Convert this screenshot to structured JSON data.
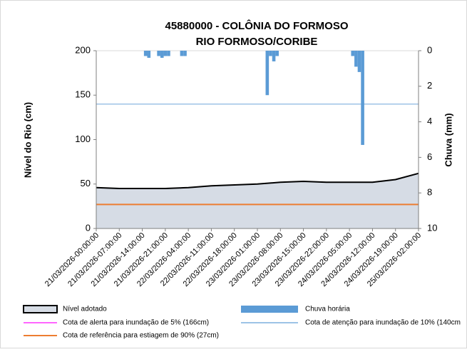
{
  "chart_data": {
    "type": "area_bar",
    "title": "45880000 - COLÔNIA DO FORMOSO",
    "subtitle": "RIO FORMOSO/CORIBE",
    "y_label": "Nível do Rio (cm)",
    "y2_label": "Chuva (mm)",
    "xticks": [
      "21/03/2026-00:00:00",
      "21/03/2026-07:00:00",
      "21/03/2026-14:00:00",
      "21/03/2026-21:00:00",
      "22/03/2026-04:00:00",
      "22/03/2026-11:00:00",
      "22/03/2026-18:00:00",
      "23/03/2026-01:00:00",
      "23/03/2026-08:00:00",
      "23/03/2026-15:00:00",
      "23/03/2026-22:00:00",
      "24/03/2026-05:00:00",
      "24/03/2026-12:00:00",
      "24/03/2026-19:00:00",
      "25/03/2026-02:00:00"
    ],
    "ylim": [
      0,
      200
    ],
    "yticks": [
      0,
      50,
      100,
      150,
      200
    ],
    "y2lim": [
      0,
      10
    ],
    "y2ticks": [
      0,
      2,
      4,
      6,
      8,
      10
    ],
    "y2_inverted": true,
    "series": [
      {
        "name": "Nível adotado",
        "color": "#d6dce5",
        "x": [
          "21/03/2026-00:00:00",
          "21/03/2026-07:00:00",
          "21/03/2026-14:00:00",
          "21/03/2026-21:00:00",
          "22/03/2026-04:00:00",
          "22/03/2026-11:00:00",
          "22/03/2026-18:00:00",
          "23/03/2026-01:00:00",
          "23/03/2026-08:00:00",
          "23/03/2026-15:00:00",
          "23/03/2026-22:00:00",
          "24/03/2026-05:00:00",
          "24/03/2026-12:00:00",
          "24/03/2026-19:00:00",
          "25/03/2026-02:00:00"
        ],
        "values": [
          46,
          45,
          45,
          45,
          46,
          48,
          49,
          50,
          52,
          53,
          52,
          52,
          52,
          55,
          62
        ]
      },
      {
        "name": "Chuva horária",
        "color": "#5b9bd5",
        "axis": "y2",
        "x": [
          "21/03/2026-15:00:00",
          "21/03/2026-16:00:00",
          "21/03/2026-19:00:00",
          "21/03/2026-20:00:00",
          "21/03/2026-21:00:00",
          "21/03/2026-22:00:00",
          "22/03/2026-02:00:00",
          "22/03/2026-03:00:00",
          "23/03/2026-04:00:00",
          "23/03/2026-05:00:00",
          "23/03/2026-06:00:00",
          "23/03/2026-07:00:00",
          "24/03/2026-06:00:00",
          "24/03/2026-07:00:00",
          "24/03/2026-08:00:00",
          "24/03/2026-09:00:00"
        ],
        "values": [
          0.3,
          0.4,
          0.3,
          0.4,
          0.3,
          0.3,
          0.3,
          0.3,
          2.5,
          0.3,
          0.6,
          0.3,
          0.3,
          0.9,
          1.2,
          5.3
        ]
      }
    ],
    "reference_lines": [
      {
        "name": "Cota de alerta para inundação de 5% (166cm)",
        "color": "#ff66ff"
      },
      {
        "name": "Cota de atenção para inundação de 10% (140cm",
        "color": "#9dc3e6",
        "value": 140
      },
      {
        "name": "Cota de referência para estiagem de 90% (27cm)",
        "color": "#ed7d31",
        "value": 27
      }
    ]
  }
}
